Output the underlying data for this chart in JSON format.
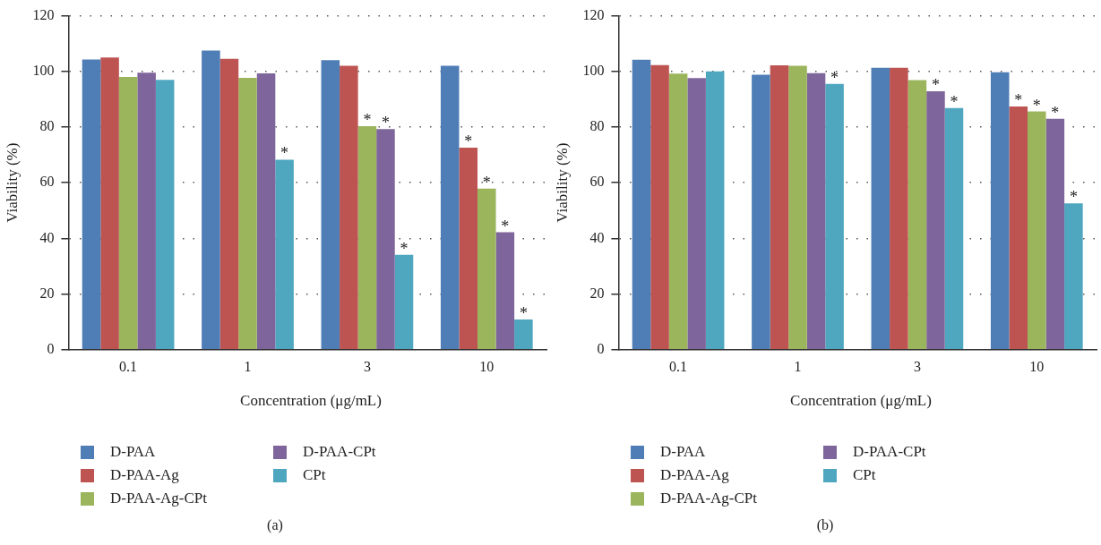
{
  "chart_data": [
    {
      "type": "bar",
      "xlabel": "Concentration (μg/mL)",
      "ylabel": "Viability (%)",
      "categories": [
        "0.1",
        "1",
        "3",
        "10"
      ],
      "ylim": [
        0,
        120
      ],
      "yticks": [
        0,
        20,
        40,
        60,
        80,
        100,
        120
      ],
      "grid": "y",
      "legend": "bottom left",
      "series": [
        {
          "name": "D-PAA",
          "color": "#4f7db5",
          "values": [
            104.3,
            107.5,
            104,
            102
          ]
        },
        {
          "name": "D-PAA-Ag",
          "color": "#bd5452",
          "values": [
            105,
            104.5,
            102,
            72.6
          ],
          "value_labels": [
            null,
            null,
            null,
            "*"
          ]
        },
        {
          "name": "D-PAA-Ag-CPt",
          "color": "#9bb55d",
          "values": [
            98,
            97.7,
            80.3,
            57.9
          ],
          "value_labels": [
            null,
            null,
            "*",
            "*"
          ]
        },
        {
          "name": "D-PAA-CPt",
          "color": "#7e659b",
          "values": [
            99.5,
            99.3,
            79.3,
            42.2
          ],
          "value_labels": [
            null,
            null,
            "*",
            "*"
          ]
        },
        {
          "name": "CPt",
          "color": "#4ea6bf",
          "values": [
            97,
            68.3,
            34.1,
            10.9
          ],
          "value_labels": [
            null,
            "*",
            "*",
            "*"
          ]
        }
      ],
      "annotations": [
        "(a)"
      ]
    },
    {
      "type": "bar",
      "xlabel": "Concentration (μg/mL)",
      "ylabel": "Viability (%)",
      "categories": [
        "0.1",
        "1",
        "3",
        "10"
      ],
      "ylim": [
        0,
        120
      ],
      "yticks": [
        0,
        20,
        40,
        60,
        80,
        100,
        120
      ],
      "grid": "y",
      "legend": "bottom left",
      "series": [
        {
          "name": "D-PAA",
          "color": "#4f7db5",
          "values": [
            104.2,
            98.8,
            101.3,
            99.7
          ]
        },
        {
          "name": "D-PAA-Ag",
          "color": "#bd5452",
          "values": [
            102.3,
            102.2,
            101.3,
            87.4
          ],
          "value_labels": [
            null,
            null,
            null,
            "*"
          ]
        },
        {
          "name": "D-PAA-Ag-CPt",
          "color": "#9bb55d",
          "values": [
            99.2,
            102,
            96.9,
            85.6
          ],
          "value_labels": [
            null,
            null,
            null,
            "*"
          ]
        },
        {
          "name": "D-PAA-CPt",
          "color": "#7e659b",
          "values": [
            97.6,
            99.4,
            92.9,
            83
          ],
          "value_labels": [
            null,
            null,
            "*",
            "*"
          ]
        },
        {
          "name": "CPt",
          "color": "#4ea6bf",
          "values": [
            100,
            95.5,
            86.8,
            52.6
          ],
          "value_labels": [
            null,
            "*",
            "*",
            "*"
          ]
        }
      ],
      "annotations": [
        "(b)"
      ]
    }
  ]
}
